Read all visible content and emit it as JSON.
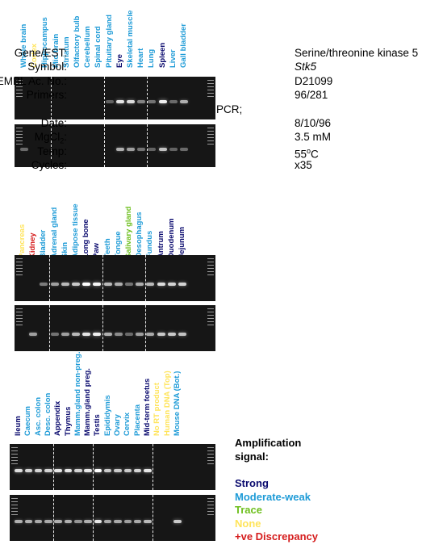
{
  "info": {
    "gene_label": "Gene/EST:",
    "gene_value": "Serine/threonine kinase 5",
    "symbol_label": "Symbol:",
    "symbol_value": "Stk5",
    "embl_label": "EMBL Ac. No.:",
    "embl_value": "D21099",
    "primers_label": "Primers:",
    "primers_value": "96/281",
    "pcr_label": "PCR;",
    "date_label": "Date:",
    "date_value": "8/10/96",
    "mgcl_label_pre": "MgCl",
    "mgcl_label_sub": "2",
    "mgcl_label_post": ":",
    "mgcl_value": "3.5 mM",
    "temp_label": "Temp:",
    "temp_value_pre": "55",
    "temp_value_sup": "o",
    "temp_value_post": "C",
    "cycles_label": "Cycles:",
    "cycles_value": "x35"
  },
  "legend": {
    "title_line1": "Amplification",
    "title_line2": "signal:",
    "items": [
      {
        "label": "Strong",
        "color": "#0a0a6e"
      },
      {
        "label": "Moderate-weak",
        "color": "#1e9bd7"
      },
      {
        "label": "Trace",
        "color": "#6dbf1d"
      },
      {
        "label": "None",
        "color": "#ffe45a"
      },
      {
        "label": "+ve Discrepancy",
        "color": "#d51c1c"
      }
    ]
  },
  "colors": {
    "strong": "#0a0a6e",
    "moderate": "#1e9bd7",
    "trace": "#6dbf1d",
    "none": "#ffe45a",
    "discrepancy": "#d51c1c"
  },
  "panels": [
    {
      "lanes": [
        {
          "label": "Whole brain",
          "level": "moderate",
          "top": 0,
          "bottom": 0.15
        },
        {
          "label": "Cortex",
          "level": "none",
          "top": 0,
          "bottom": 0
        },
        {
          "label": "Hippocampus",
          "level": "moderate",
          "top": 0,
          "bottom": 0
        },
        {
          "label": "Mid brain",
          "level": "moderate",
          "top": 0,
          "bottom": 0
        },
        {
          "label": "Striatum",
          "level": "moderate",
          "top": 0,
          "bottom": 0
        },
        {
          "label": "Olfactory bulb",
          "level": "moderate",
          "top": 0,
          "bottom": 0
        },
        {
          "label": "Cerebellum",
          "level": "moderate",
          "top": 0,
          "bottom": 0
        },
        {
          "label": "Spinal cord",
          "level": "moderate",
          "top": 0,
          "bottom": 0
        },
        {
          "label": "Pituitary gland",
          "level": "moderate",
          "top": 0.1,
          "bottom": 0
        },
        {
          "label": "Eye",
          "level": "strong",
          "top": 0.85,
          "bottom": 0.55
        },
        {
          "label": "Skeletal muscle",
          "level": "moderate",
          "top": 0.8,
          "bottom": 0.45
        },
        {
          "label": "Heart",
          "level": "moderate",
          "top": 0.3,
          "bottom": 0.2
        },
        {
          "label": "Lung",
          "level": "moderate",
          "top": 0.2,
          "bottom": 0.1
        },
        {
          "label": "Spleen",
          "level": "strong",
          "top": 0.9,
          "bottom": 0.65
        },
        {
          "label": "Liver",
          "level": "moderate",
          "top": 0.15,
          "bottom": 0.1
        },
        {
          "label": "Gall bladder",
          "level": "moderate",
          "top": 0.55,
          "bottom": 0.15
        }
      ]
    },
    {
      "lanes": [
        {
          "label": "Pancreas",
          "level": "none",
          "top": 0,
          "bottom": 0
        },
        {
          "label": "Kidney",
          "level": "discrepancy",
          "top": 0,
          "bottom": 0.45
        },
        {
          "label": "Bladder",
          "level": "moderate",
          "top": 0.25,
          "bottom": 0
        },
        {
          "label": "Adrenal gland",
          "level": "moderate",
          "top": 0.45,
          "bottom": 0.2
        },
        {
          "label": "Skin",
          "level": "moderate",
          "top": 0.6,
          "bottom": 0.45
        },
        {
          "label": "Adipose tissue",
          "level": "moderate",
          "top": 0.7,
          "bottom": 0.6
        },
        {
          "label": "Long bone",
          "level": "strong",
          "top": 1,
          "bottom": 0.85
        },
        {
          "label": "Paw",
          "level": "strong",
          "top": 0.95,
          "bottom": 0.9
        },
        {
          "label": "Teeth",
          "level": "moderate",
          "top": 0.6,
          "bottom": 0.55
        },
        {
          "label": "Tongue",
          "level": "moderate",
          "top": 0.55,
          "bottom": 0.35
        },
        {
          "label": "Salivary gland",
          "level": "trace",
          "top": 0.2,
          "bottom": 0.15
        },
        {
          "label": "Oesophagus",
          "level": "moderate",
          "top": 0.55,
          "bottom": 0.45
        },
        {
          "label": "Fundus",
          "level": "moderate",
          "top": 0.6,
          "bottom": 0.5
        },
        {
          "label": "Antrum",
          "level": "strong",
          "top": 0.8,
          "bottom": 0.7
        },
        {
          "label": "Duodenum",
          "level": "strong",
          "top": 0.75,
          "bottom": 0.7
        },
        {
          "label": "Jejunum",
          "level": "strong",
          "top": 0.75,
          "bottom": 0.65
        }
      ]
    },
    {
      "lanes": [
        {
          "label": "Ileum",
          "level": "strong",
          "top": 0.8,
          "bottom": 0.55
        },
        {
          "label": "Caecum",
          "level": "moderate",
          "top": 0.75,
          "bottom": 0.55
        },
        {
          "label": "Asc. colon",
          "level": "moderate",
          "top": 0.75,
          "bottom": 0.5
        },
        {
          "label": "Desc. colon",
          "level": "moderate",
          "top": 0.75,
          "bottom": 0.5
        },
        {
          "label": "Appendix",
          "level": "strong",
          "top": 0.85,
          "bottom": 0.55
        },
        {
          "label": "Thymus",
          "level": "strong",
          "top": 0.85,
          "bottom": 0.55
        },
        {
          "label": "Mamm.gland non-preg.",
          "level": "moderate",
          "top": 0.75,
          "bottom": 0.4
        },
        {
          "label": "Mamm.gland preg.",
          "level": "strong",
          "top": 0.85,
          "bottom": 0.55
        },
        {
          "label": "Testis",
          "level": "strong",
          "top": 1,
          "bottom": 0.85
        },
        {
          "label": "Epididymis",
          "level": "moderate",
          "top": 0.7,
          "bottom": 0.5
        },
        {
          "label": "Ovary",
          "level": "moderate",
          "top": 0.7,
          "bottom": 0.5
        },
        {
          "label": "Cervix",
          "level": "moderate",
          "top": 0.7,
          "bottom": 0.45
        },
        {
          "label": "Placenta",
          "level": "moderate",
          "top": 0.75,
          "bottom": 0.5
        },
        {
          "label": "Mid-term foetus",
          "level": "strong",
          "top": 0.85,
          "bottom": 0.6
        },
        {
          "label": "No RT product",
          "level": "none",
          "top": 0,
          "bottom": 0
        },
        {
          "label": "Human DNA (Top)",
          "level": "none",
          "top": 0,
          "bottom": 0
        },
        {
          "label": "Mouse DNA (Bot.)",
          "level": "moderate",
          "top": 0,
          "bottom": 0.7
        }
      ]
    }
  ]
}
